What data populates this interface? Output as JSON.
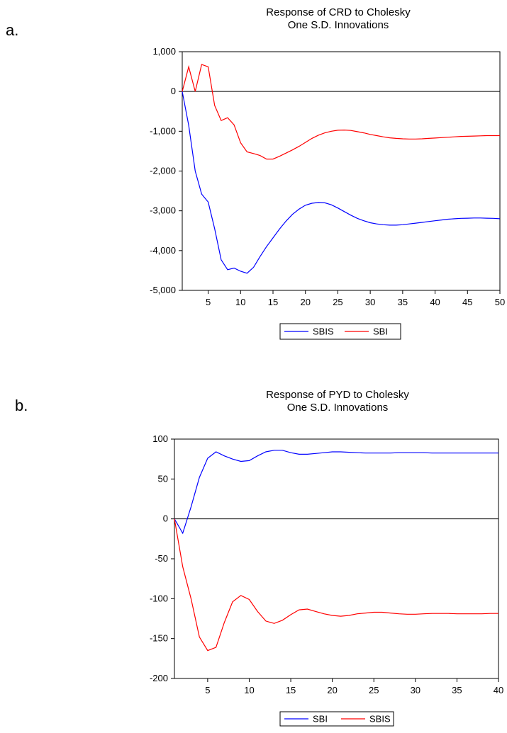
{
  "chart_data": [
    {
      "type": "line",
      "panel_label": "a.",
      "title_line1": "Response of CRD to Cholesky",
      "title_line2": "One S.D. Innovations",
      "xlim": [
        1,
        50
      ],
      "ylim": [
        -5000,
        1000
      ],
      "xticks": [
        5,
        10,
        15,
        20,
        25,
        30,
        35,
        40,
        45,
        50
      ],
      "yticks": [
        1000,
        0,
        -1000,
        -2000,
        -3000,
        -4000,
        -5000
      ],
      "ytick_labels": [
        "1,000",
        "0",
        "-1,000",
        "-2,000",
        "-3,000",
        "-4,000",
        "-5,000"
      ],
      "legend_position": "bottom-center",
      "series": [
        {
          "name": "SBIS",
          "color": "#0000ff",
          "x": [
            1,
            2,
            3,
            4,
            5,
            6,
            7,
            8,
            9,
            10,
            11,
            12,
            13,
            14,
            15,
            16,
            17,
            18,
            19,
            20,
            21,
            22,
            23,
            24,
            25,
            26,
            27,
            28,
            29,
            30,
            31,
            32,
            33,
            34,
            35,
            36,
            37,
            38,
            39,
            40,
            41,
            42,
            43,
            44,
            45,
            46,
            47,
            48,
            49,
            50
          ],
          "values": [
            0,
            -850,
            -2000,
            -2580,
            -2780,
            -3450,
            -4230,
            -4480,
            -4440,
            -4520,
            -4570,
            -4420,
            -4150,
            -3900,
            -3680,
            -3460,
            -3260,
            -3090,
            -2960,
            -2860,
            -2810,
            -2790,
            -2800,
            -2850,
            -2930,
            -3020,
            -3110,
            -3190,
            -3250,
            -3300,
            -3330,
            -3350,
            -3360,
            -3360,
            -3350,
            -3330,
            -3310,
            -3290,
            -3270,
            -3250,
            -3230,
            -3210,
            -3200,
            -3190,
            -3185,
            -3180,
            -3180,
            -3185,
            -3190,
            -3200
          ]
        },
        {
          "name": "SBI",
          "color": "#ff0000",
          "x": [
            1,
            2,
            3,
            4,
            5,
            6,
            7,
            8,
            9,
            10,
            11,
            12,
            13,
            14,
            15,
            16,
            17,
            18,
            19,
            20,
            21,
            22,
            23,
            24,
            25,
            26,
            27,
            28,
            29,
            30,
            31,
            32,
            33,
            34,
            35,
            36,
            37,
            38,
            39,
            40,
            41,
            42,
            43,
            44,
            45,
            46,
            47,
            48,
            49,
            50
          ],
          "values": [
            0,
            620,
            0,
            680,
            620,
            -350,
            -730,
            -660,
            -840,
            -1290,
            -1520,
            -1560,
            -1610,
            -1700,
            -1700,
            -1630,
            -1550,
            -1470,
            -1380,
            -1280,
            -1180,
            -1100,
            -1040,
            -1000,
            -975,
            -970,
            -980,
            -1010,
            -1040,
            -1080,
            -1110,
            -1140,
            -1165,
            -1180,
            -1190,
            -1195,
            -1195,
            -1190,
            -1180,
            -1170,
            -1160,
            -1150,
            -1140,
            -1130,
            -1125,
            -1120,
            -1115,
            -1110,
            -1110,
            -1110
          ]
        }
      ]
    },
    {
      "type": "line",
      "panel_label": "b.",
      "title_line1": "Response of PYD to Cholesky",
      "title_line2": "One S.D. Innovations",
      "xlim": [
        1,
        40
      ],
      "ylim": [
        -200,
        100
      ],
      "xticks": [
        5,
        10,
        15,
        20,
        25,
        30,
        35,
        40
      ],
      "yticks": [
        100,
        50,
        0,
        -50,
        -100,
        -150,
        -200
      ],
      "ytick_labels": [
        "100",
        "50",
        "0",
        "-50",
        "-100",
        "-150",
        "-200"
      ],
      "legend_position": "bottom-center",
      "series": [
        {
          "name": "SBI",
          "color": "#0000ff",
          "x": [
            1,
            2,
            3,
            4,
            5,
            6,
            7,
            8,
            9,
            10,
            11,
            12,
            13,
            14,
            15,
            16,
            17,
            18,
            19,
            20,
            21,
            22,
            23,
            24,
            25,
            26,
            27,
            28,
            29,
            30,
            31,
            32,
            33,
            34,
            35,
            36,
            37,
            38,
            39,
            40
          ],
          "values": [
            0,
            -18,
            15,
            52,
            76,
            84,
            79,
            75,
            72,
            73,
            79,
            84,
            86,
            86,
            83,
            81,
            81,
            82,
            83,
            84,
            84,
            83.5,
            83,
            82.5,
            82.5,
            82.5,
            82.5,
            83,
            83,
            83,
            83,
            82.5,
            82.5,
            82.5,
            82.5,
            82.5,
            82.5,
            82.5,
            82.5,
            82.5
          ]
        },
        {
          "name": "SBIS",
          "color": "#ff0000",
          "x": [
            1,
            2,
            3,
            4,
            5,
            6,
            7,
            8,
            9,
            10,
            11,
            12,
            13,
            14,
            15,
            16,
            17,
            18,
            19,
            20,
            21,
            22,
            23,
            24,
            25,
            26,
            27,
            28,
            29,
            30,
            31,
            32,
            33,
            34,
            35,
            36,
            37,
            38,
            39,
            40
          ],
          "values": [
            0,
            -60,
            -100,
            -148,
            -165,
            -161,
            -130,
            -104,
            -96,
            -101,
            -116,
            -128,
            -131,
            -127,
            -120,
            -114,
            -113,
            -116,
            -119,
            -121,
            -122,
            -121,
            -119,
            -118,
            -117,
            -117,
            -118,
            -119,
            -119.5,
            -119.5,
            -119,
            -118.5,
            -118.5,
            -118.5,
            -119,
            -119,
            -119,
            -119,
            -118.5,
            -118.5
          ]
        }
      ]
    }
  ]
}
